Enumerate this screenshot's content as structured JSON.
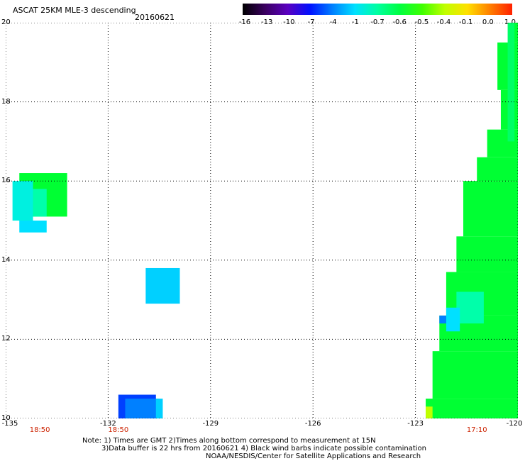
{
  "header": {
    "title": "ASCAT 25KM MLE-3 descending",
    "date": "20160621"
  },
  "colorbar": {
    "labels": [
      "-16",
      "-13",
      "-10",
      "-7",
      "-4",
      "-1",
      "-0.7",
      "-0.6",
      "-0.5",
      "-0.4",
      "-0.1",
      "0.0",
      "1.0"
    ],
    "colors": [
      "#000000",
      "#3a0060",
      "#5a00c0",
      "#0010ff",
      "#0080ff",
      "#00e0ff",
      "#00ffa0",
      "#00ff40",
      "#40ff00",
      "#c0ff00",
      "#ffe000",
      "#ff8000",
      "#ff2000"
    ]
  },
  "axes": {
    "y_labels": [
      "20",
      "18",
      "16",
      "14",
      "12",
      "10"
    ],
    "x_labels": [
      "-135",
      "-132",
      "-129",
      "-126",
      "-123",
      "-120"
    ],
    "lon_range": [
      -135,
      -120
    ],
    "lat_range": [
      10,
      20
    ]
  },
  "time_labels": [
    {
      "text": "18:50",
      "lon": -134.0
    },
    {
      "text": "18:50",
      "lon": -131.7
    },
    {
      "text": "17:10",
      "lon": -121.2
    }
  ],
  "notes": {
    "line1": "Note: 1) Times are GMT 2)Times along bottom correspond to measurement at 15N",
    "line2": "3)Data buffer is 22 hrs from 20160621 4) Black wind barbs indicate possible contamination",
    "line3": "NOAA/NESDIS/Center for Satellite Applications and Research"
  },
  "data_patches": [
    {
      "lon": [
        -134.6,
        -133.2
      ],
      "lat": [
        15.1,
        16.2
      ],
      "color": "#00ff33"
    },
    {
      "lon": [
        -134.8,
        -134.2
      ],
      "lat": [
        15.0,
        16.0
      ],
      "color": "#00f0e0"
    },
    {
      "lon": [
        -134.2,
        -133.8
      ],
      "lat": [
        15.1,
        15.8
      ],
      "color": "#00ffaa"
    },
    {
      "lon": [
        -134.6,
        -133.8
      ],
      "lat": [
        14.7,
        15.0
      ],
      "color": "#00e0ff"
    },
    {
      "lon": [
        -130.9,
        -129.9
      ],
      "lat": [
        12.9,
        13.8
      ],
      "color": "#00d0ff"
    },
    {
      "lon": [
        -131.7,
        -130.6
      ],
      "lat": [
        10.0,
        10.6
      ],
      "color": "#0040ff"
    },
    {
      "lon": [
        -131.5,
        -130.5
      ],
      "lat": [
        10.0,
        10.5
      ],
      "color": "#0080ff"
    },
    {
      "lon": [
        -130.6,
        -130.4
      ],
      "lat": [
        10.0,
        10.5
      ],
      "color": "#00d0ff"
    }
  ]
}
